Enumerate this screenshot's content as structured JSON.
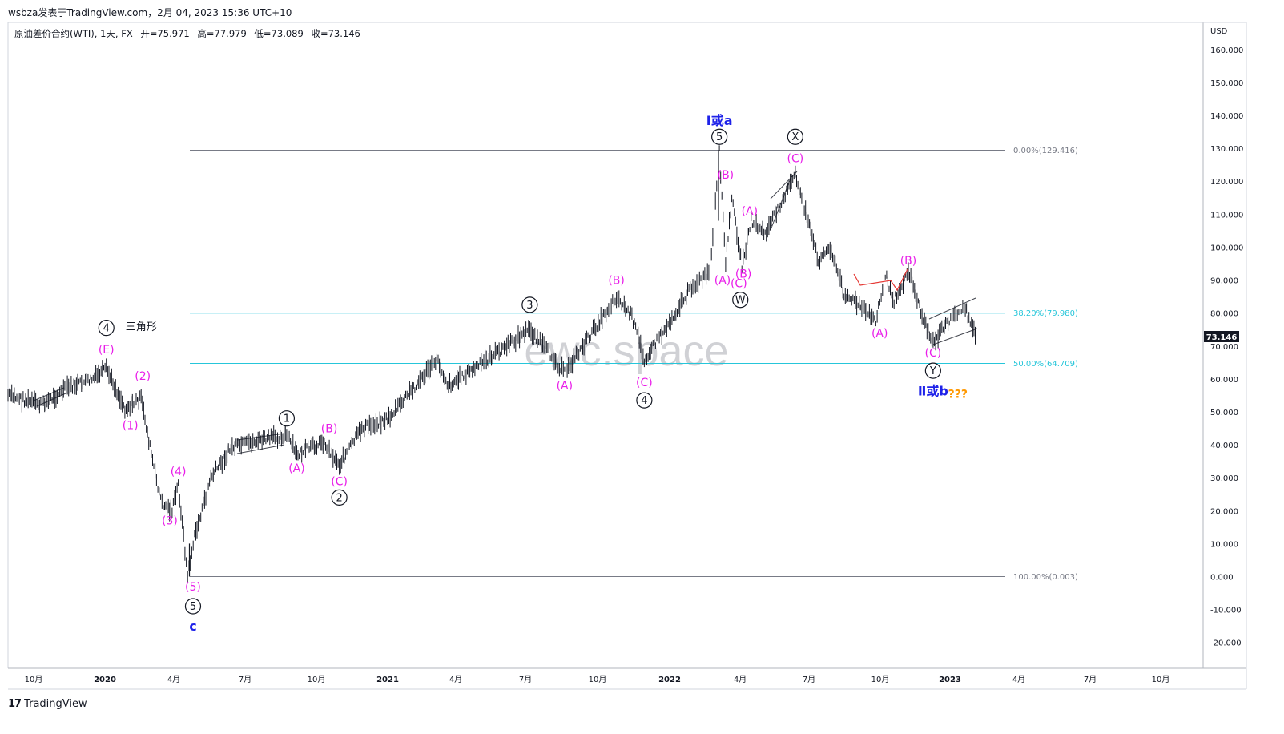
{
  "header": {
    "publish_line": "wsbza发表于TradingView.com，2月 04, 2023 15:36 UTC+10"
  },
  "symbol": {
    "name": "原油差价合约(WTI), 1天, FX",
    "open": "开=75.971",
    "high": "高=77.979",
    "low": "低=73.089",
    "close": "收=73.146"
  },
  "watermark": "ewc.space",
  "footer": {
    "brand": "TradingView",
    "logo_glyph": "17"
  },
  "colors": {
    "candles": "#131722",
    "wave_pink": "#e91ee9",
    "wave_blue": "#1e22e9",
    "fib_cyan": "#26c6da",
    "fib_gray": "#787b86",
    "question_orange": "#ff9800",
    "price_tag_bg": "#131722"
  },
  "chart_data": {
    "type": "line",
    "title": "原油差价合约(WTI), 1天, FX",
    "y_axis_unit": "USD",
    "ylim": [
      -25,
      165
    ],
    "y_ticks": [
      "160.000",
      "150.000",
      "140.000",
      "130.000",
      "120.000",
      "110.000",
      "100.000",
      "90.000",
      "80.000",
      "70.000",
      "60.000",
      "50.000",
      "40.000",
      "30.000",
      "20.000",
      "10.000",
      "0.000",
      "-10.000",
      "-20.000"
    ],
    "x_ticks": [
      "10月",
      "2020",
      "4月",
      "7月",
      "10月",
      "2021",
      "4月",
      "7月",
      "10月",
      "2022",
      "4月",
      "7月",
      "10月",
      "2023",
      "4月",
      "7月",
      "10月"
    ],
    "last_price": "73.146",
    "series": [
      {
        "x": [
          "2019-09-01",
          "2019-10-15",
          "2019-11-15",
          "2019-12-20",
          "2020-01-06",
          "2020-01-30",
          "2020-02-20",
          "2020-03-09",
          "2020-03-18",
          "2020-03-31",
          "2020-04-08",
          "2020-04-20",
          "2020-04-29",
          "2020-05-20",
          "2020-06-15",
          "2020-07-15",
          "2020-08-26",
          "2020-09-08",
          "2020-10-12",
          "2020-11-02",
          "2020-12-01",
          "2021-01-05",
          "2021-03-08",
          "2021-03-23",
          "2021-05-01",
          "2021-07-06",
          "2021-08-20",
          "2021-10-26",
          "2021-11-15",
          "2021-12-01",
          "2021-12-30",
          "2022-01-31",
          "2022-02-24",
          "2022-03-08",
          "2022-03-16",
          "2022-03-24",
          "2022-04-06",
          "2022-04-18",
          "2022-05-06",
          "2022-06-14",
          "2022-07-14",
          "2022-07-29",
          "2022-08-16",
          "2022-09-26",
          "2022-10-10",
          "2022-10-18",
          "2022-11-07",
          "2022-11-28",
          "2022-12-09",
          "2022-12-30",
          "2023-01-18",
          "2023-02-03"
        ],
        "y": [
          55,
          52,
          57,
          60,
          63,
          51,
          54,
          31,
          22,
          20,
          28,
          0,
          12,
          30,
          39,
          41,
          43,
          37,
          41,
          34,
          45,
          48,
          66,
          58,
          64,
          75,
          62,
          85,
          79,
          66,
          76,
          88,
          92,
          129,
          95,
          115,
          94,
          108,
          104,
          122,
          96,
          100,
          86,
          78,
          92,
          83,
          93,
          77,
          71,
          78,
          82,
          73.146
        ]
      }
    ],
    "fib_levels": [
      {
        "label": "0.00%(129.416)",
        "value": 129.416
      },
      {
        "label": "38.20%(79.980)",
        "value": 79.98
      },
      {
        "label": "50.00%(64.709)",
        "value": 64.709
      },
      {
        "label": "100.00%(0.003)",
        "value": 0.003
      }
    ],
    "annotations": [
      {
        "text": "Ⅰ或a",
        "kind": "blue-label",
        "x": "2022-03-08",
        "y": 138.5
      },
      {
        "text": "5",
        "kind": "circle",
        "x": "2022-03-08",
        "y": 133.5
      },
      {
        "text": "(B)",
        "kind": "pink",
        "x": "2022-03-16",
        "y": 122
      },
      {
        "text": "(A)",
        "kind": "pink",
        "x": "2022-03-12",
        "y": 90
      },
      {
        "text": "(C)",
        "kind": "pink",
        "x": "2022-04-02",
        "y": 89
      },
      {
        "text": "W",
        "kind": "circle",
        "x": "2022-04-04",
        "y": 84
      },
      {
        "text": "(A)",
        "kind": "pink",
        "x": "2022-04-16",
        "y": 111
      },
      {
        "text": "(B)",
        "kind": "pink",
        "x": "2022-04-08",
        "y": 92
      },
      {
        "text": "X",
        "kind": "circle",
        "x": "2022-06-14",
        "y": 133.5
      },
      {
        "text": "(C)",
        "kind": "pink",
        "x": "2022-06-14",
        "y": 127
      },
      {
        "text": "(B)",
        "kind": "pink",
        "x": "2022-11-07",
        "y": 96
      },
      {
        "text": "(A)",
        "kind": "pink",
        "x": "2022-10-01",
        "y": 74
      },
      {
        "text": "(C)",
        "kind": "pink",
        "x": "2022-12-09",
        "y": 68
      },
      {
        "text": "Y",
        "kind": "circle",
        "x": "2022-12-09",
        "y": 62.5
      },
      {
        "text": "Ⅱ或b",
        "kind": "blue-label",
        "x": "2022-12-09",
        "y": 56.5
      },
      {
        "text": "???",
        "kind": "orange",
        "x": "2023-01-10",
        "y": 55.5
      },
      {
        "text": "3",
        "kind": "circle",
        "x": "2021-07-06",
        "y": 82.5
      },
      {
        "text": "(B)",
        "kind": "pink",
        "x": "2021-10-26",
        "y": 90
      },
      {
        "text": "(A)",
        "kind": "pink",
        "x": "2021-08-20",
        "y": 58
      },
      {
        "text": "(C)",
        "kind": "pink",
        "x": "2021-12-01",
        "y": 59
      },
      {
        "text": "4",
        "kind": "circle",
        "x": "2021-12-01",
        "y": 53.5
      },
      {
        "text": "1",
        "kind": "circle",
        "x": "2020-08-26",
        "y": 48
      },
      {
        "text": "(A)",
        "kind": "pink",
        "x": "2020-09-08",
        "y": 33
      },
      {
        "text": "(B)",
        "kind": "pink",
        "x": "2020-10-20",
        "y": 45
      },
      {
        "text": "(C)",
        "kind": "pink",
        "x": "2020-11-02",
        "y": 29
      },
      {
        "text": "2",
        "kind": "circle",
        "x": "2020-11-02",
        "y": 24
      },
      {
        "text": "4",
        "kind": "circle",
        "x": "2020-01-06",
        "y": 75.5
      },
      {
        "text": "三角形",
        "kind": "black",
        "x": "2020-02-20",
        "y": 76
      },
      {
        "text": "(E)",
        "kind": "pink",
        "x": "2020-01-06",
        "y": 69
      },
      {
        "text": "(2)",
        "kind": "pink",
        "x": "2020-02-22",
        "y": 61
      },
      {
        "text": "(1)",
        "kind": "pink",
        "x": "2020-02-06",
        "y": 46
      },
      {
        "text": "(4)",
        "kind": "pink",
        "x": "2020-04-08",
        "y": 32
      },
      {
        "text": "(3)",
        "kind": "pink",
        "x": "2020-03-28",
        "y": 17
      },
      {
        "text": "(5)",
        "kind": "pink",
        "x": "2020-04-27",
        "y": -3
      },
      {
        "text": "5",
        "kind": "circle",
        "x": "2020-04-27",
        "y": -9
      },
      {
        "text": "c",
        "kind": "blue-label",
        "x": "2020-04-27",
        "y": -15
      }
    ],
    "grid": false,
    "legend": "none"
  }
}
